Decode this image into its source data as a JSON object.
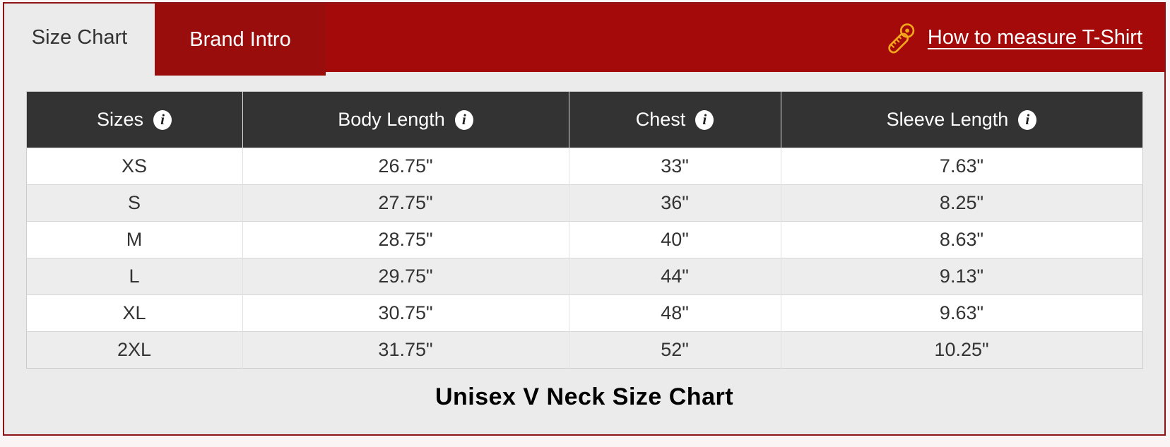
{
  "tabs": [
    {
      "label": "Size Chart",
      "active": true
    },
    {
      "label": "Brand Intro",
      "active": false
    }
  ],
  "header_link": {
    "label": "How to measure T-Shirt",
    "icon": "measuring-tape-icon"
  },
  "table": {
    "columns": [
      {
        "label": "Sizes",
        "icon": "info-icon"
      },
      {
        "label": "Body Length",
        "icon": "info-icon"
      },
      {
        "label": "Chest",
        "icon": "info-icon"
      },
      {
        "label": "Sleeve Length",
        "icon": "info-icon"
      }
    ],
    "info_icon_glyph": "i",
    "rows": [
      [
        "XS",
        "26.75\"",
        "33\"",
        "7.63\""
      ],
      [
        "S",
        "27.75\"",
        "36\"",
        "8.25\""
      ],
      [
        "M",
        "28.75\"",
        "40\"",
        "8.63\""
      ],
      [
        "L",
        "29.75\"",
        "44\"",
        "9.13\""
      ],
      [
        "XL",
        "30.75\"",
        "48\"",
        "9.63\""
      ],
      [
        "2XL",
        "31.75\"",
        "52\"",
        "10.25\""
      ]
    ]
  },
  "caption": "Unisex V Neck Size Chart",
  "colors": {
    "band_red": "#A40A0A",
    "brand_tab_red": "#9A0D0D",
    "panel_border_red": "#8C1414",
    "table_header_bg": "#333333",
    "content_bg": "#EBEBEB",
    "row_stripe": "#EDEDED",
    "tape_icon_gold": "#F2A71B",
    "text_dark": "#333333"
  }
}
